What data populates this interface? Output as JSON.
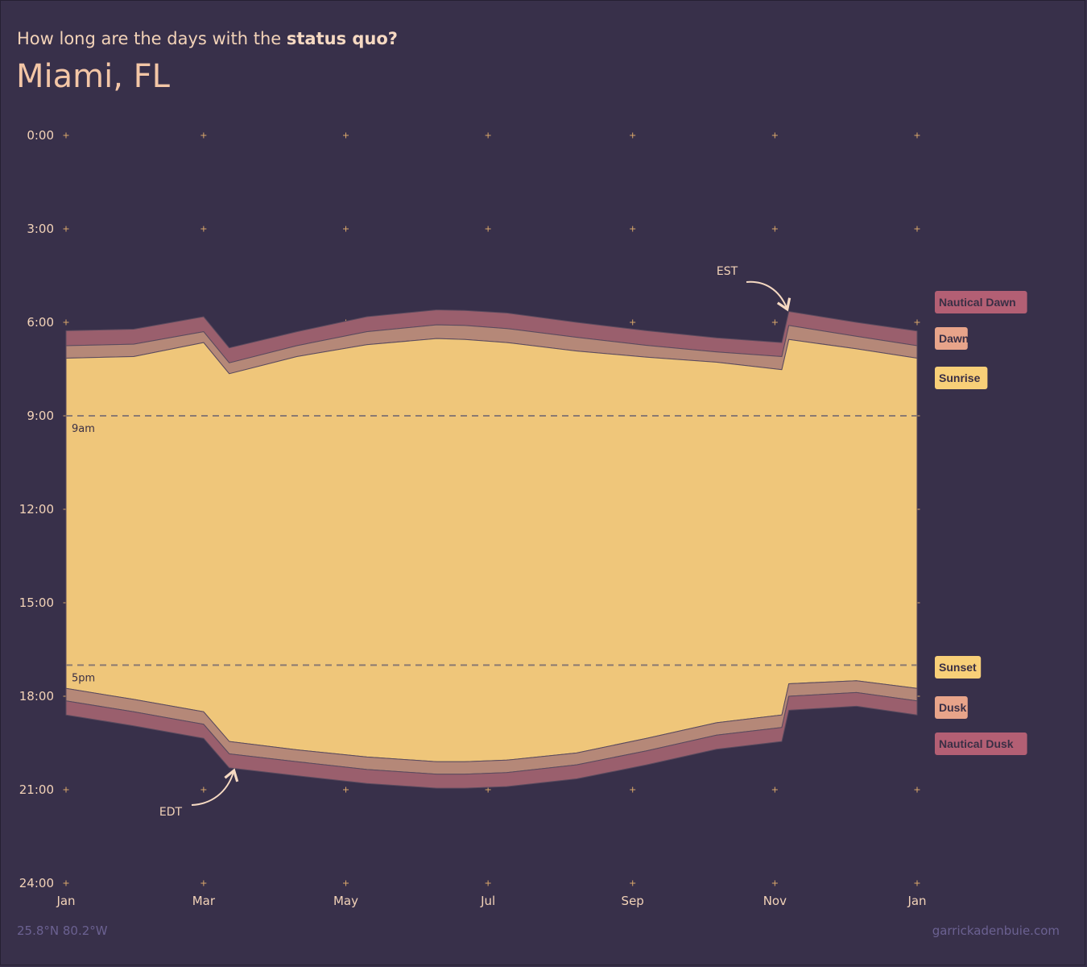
{
  "header": {
    "subtitle_prefix": "How long are the days with the ",
    "subtitle_emphasis": "status quo?",
    "title": "Miami, FL"
  },
  "footer": {
    "coords": "25.8°N 80.2°W",
    "credit": "garrickadenbuie.com"
  },
  "chart_data": {
    "type": "area",
    "x_unit": "day of year",
    "y_unit": "hour of day",
    "ylim": [
      24,
      0
    ],
    "xlim": [
      1,
      366
    ],
    "y_ticks": [
      0,
      3,
      6,
      9,
      12,
      15,
      18,
      21,
      24
    ],
    "y_tick_labels": [
      "0:00",
      "3:00",
      "6:00",
      "9:00",
      "12:00",
      "15:00",
      "18:00",
      "21:00",
      "24:00"
    ],
    "x_ticks": [
      1,
      60,
      121,
      182,
      244,
      305,
      366
    ],
    "x_tick_labels": [
      "Jan",
      "Mar",
      "May",
      "Jul",
      "Sep",
      "Nov",
      "Jan"
    ],
    "reference_lines": [
      {
        "y": 9,
        "label": "9am"
      },
      {
        "y": 17,
        "label": "5pm"
      }
    ],
    "annotations": [
      {
        "label": "EST",
        "x": 310,
        "y": 5.5
      },
      {
        "label": "EDT",
        "x": 72,
        "y": 20.5
      }
    ],
    "legend": [
      "Nautical Dawn",
      "Dawn",
      "Sunrise",
      "Sunset",
      "Dusk",
      "Nautical Dusk"
    ],
    "legend_colors": {
      "Nautical Dawn": "#b35f74",
      "Dawn": "#e8a48a",
      "Sunrise": "#f8cf78",
      "Sunset": "#f8cf78",
      "Dusk": "#e8a48a",
      "Nautical Dusk": "#b35f74"
    },
    "colors": {
      "daylight": "#efc67a",
      "civil": "#b58878",
      "nautical": "#9a5f6d",
      "grid_mark": "#d9a66a",
      "ref_line": "#8a7a72"
    },
    "x": [
      1,
      30,
      60,
      71,
      100,
      130,
      160,
      172,
      190,
      220,
      250,
      280,
      308,
      311,
      340,
      366
    ],
    "series": [
      {
        "name": "Nautical Dawn",
        "values": [
          6.27,
          6.22,
          5.82,
          6.82,
          6.3,
          5.82,
          5.6,
          5.62,
          5.7,
          6.0,
          6.27,
          6.5,
          6.65,
          5.65,
          6.0,
          6.28
        ]
      },
      {
        "name": "Dawn",
        "values": [
          6.75,
          6.7,
          6.3,
          7.3,
          6.75,
          6.3,
          6.08,
          6.1,
          6.2,
          6.48,
          6.74,
          6.95,
          7.1,
          6.1,
          6.45,
          6.75
        ]
      },
      {
        "name": "Sunrise",
        "values": [
          7.15,
          7.1,
          6.65,
          7.65,
          7.1,
          6.72,
          6.52,
          6.55,
          6.65,
          6.92,
          7.12,
          7.28,
          7.52,
          6.55,
          6.85,
          7.15
        ]
      },
      {
        "name": "Sunset",
        "values": [
          17.75,
          18.1,
          18.5,
          19.45,
          19.72,
          19.95,
          20.1,
          20.1,
          20.05,
          19.82,
          19.35,
          18.85,
          18.6,
          17.6,
          17.5,
          17.75
        ]
      },
      {
        "name": "Dusk",
        "values": [
          18.15,
          18.5,
          18.9,
          19.85,
          20.1,
          20.35,
          20.5,
          20.5,
          20.45,
          20.2,
          19.75,
          19.25,
          19.0,
          18.0,
          17.88,
          18.15
        ]
      },
      {
        "name": "Nautical Dusk",
        "values": [
          18.6,
          18.95,
          19.35,
          20.3,
          20.55,
          20.8,
          20.95,
          20.95,
          20.9,
          20.65,
          20.2,
          19.7,
          19.45,
          18.45,
          18.32,
          18.6
        ]
      }
    ]
  }
}
